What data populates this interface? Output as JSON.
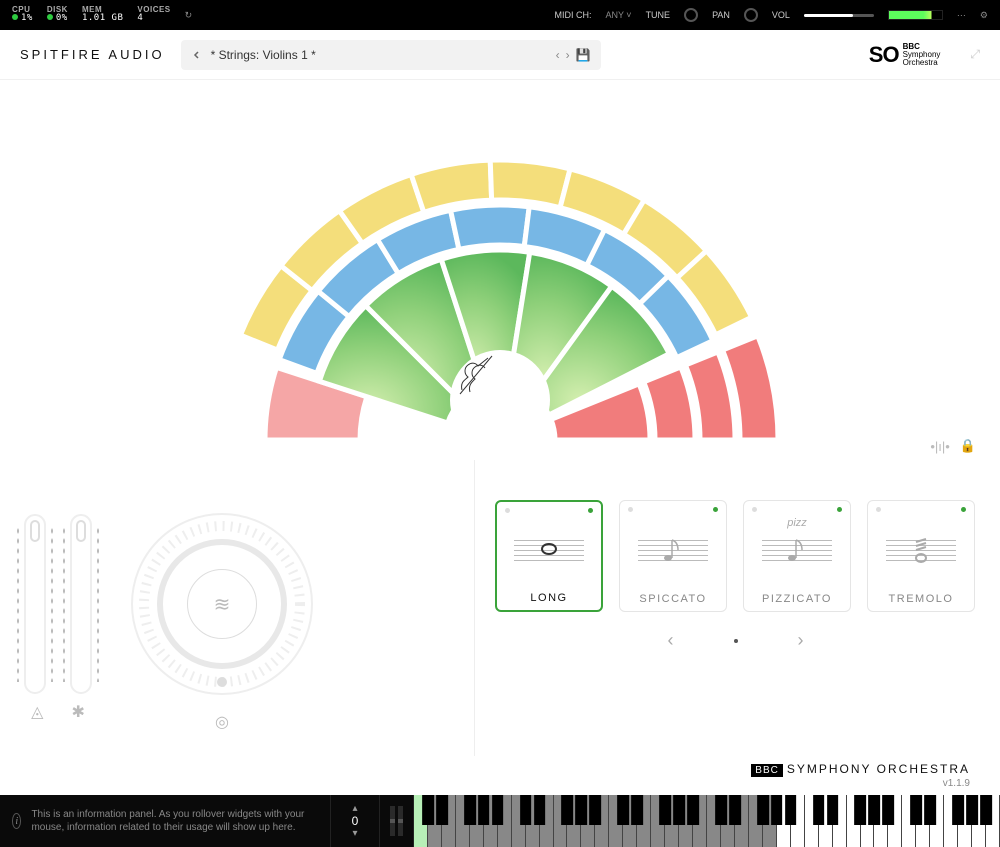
{
  "topbar": {
    "cpu_label": "CPU",
    "cpu_val": "1%",
    "cpu_dot": "#2ecc40",
    "disk_label": "DISK",
    "disk_val": "0%",
    "disk_dot": "#2ecc40",
    "mem_label": "MEM",
    "mem_val": "1.01 GB",
    "voices_label": "VOICES",
    "voices_val": "4",
    "midi_label": "MIDI CH:",
    "midi_val": "ANY",
    "tune_label": "TUNE",
    "pan_label": "PAN",
    "vol_label": "VOL"
  },
  "header": {
    "brand": "SPITFIRE AUDIO",
    "preset": "* Strings: Violins 1 *",
    "logo_so": "SO",
    "logo_bbc_line1": "BBC",
    "logo_bbc_line2": "Symphony",
    "logo_bbc_line3": "Orchestra"
  },
  "semi": {
    "rings": {
      "inner": {
        "from": "#6bbf59",
        "to": "#a8e08a",
        "segments": 5
      },
      "middle": {
        "color": "#77b7e5",
        "segments": 7
      },
      "outer": {
        "color": "#f4de7b",
        "segments": 8
      },
      "red": {
        "color": "#f17c7c",
        "segments": 4
      },
      "red_left": {
        "color": "#f5a6a6"
      }
    }
  },
  "articulations": {
    "items": [
      {
        "id": "long",
        "label": "LONG",
        "selected": true,
        "note_type": "whole",
        "accent": "#3aa33a"
      },
      {
        "id": "spiccato",
        "label": "SPICCATO",
        "selected": false,
        "note_type": "eighth",
        "accent": "#3aa33a"
      },
      {
        "id": "pizzicato",
        "label": "PIZZICATO",
        "selected": false,
        "note_type": "eighth",
        "extra": "pizz",
        "accent": "#3aa33a"
      },
      {
        "id": "tremolo",
        "label": "TREMOLO",
        "selected": false,
        "note_type": "trem",
        "accent": "#3aa33a"
      }
    ]
  },
  "footer": {
    "bbc": "BBC",
    "orchestra": "SYMPHONY ORCHESTRA",
    "version": "v1.1.9"
  },
  "kb": {
    "info": "This is an information panel. As you rollover widgets with your mouse, information related to their usage will show up here.",
    "octave": "0",
    "playable_start_pct": 63,
    "art_keys_end_pct": 3
  }
}
